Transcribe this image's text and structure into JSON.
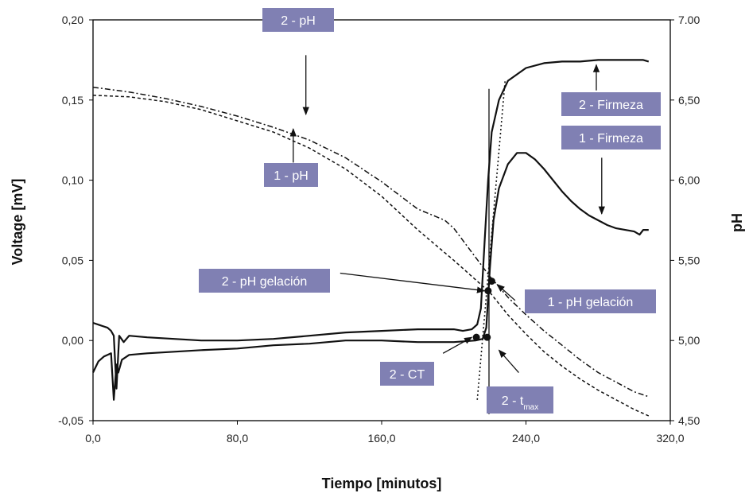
{
  "colors": {
    "annotation_bg": "#8080b3",
    "annotation_text": "#ffffff",
    "line": "#111111",
    "axis": "#000000"
  },
  "chart_data": {
    "type": "line",
    "xlabel": "Tiempo [minutos]",
    "ylabel": "Voltage [mV]",
    "y2label": "pH",
    "xlim": [
      0,
      320
    ],
    "ylim": [
      -0.05,
      0.2
    ],
    "y2lim": [
      4.5,
      7.0
    ],
    "x_ticks": [
      "0,0",
      "80,0",
      "160,0",
      "240,0",
      "320,0"
    ],
    "y_ticks": [
      "-0,05",
      "0,00",
      "0,05",
      "0,10",
      "0,15",
      "0,20"
    ],
    "y2_ticks": [
      "4,50",
      "5,00",
      "5,50",
      "6,00",
      "6,50",
      "7.00"
    ],
    "grid": false,
    "series": [
      {
        "axis": "left",
        "style": "solid",
        "points": [
          [
            0,
            -0.02
          ],
          [
            3,
            -0.013
          ],
          [
            6,
            -0.01
          ],
          [
            10,
            -0.008
          ],
          [
            11.5,
            -0.037
          ],
          [
            13,
            -0.015
          ],
          [
            14,
            -0.02
          ],
          [
            16,
            -0.012
          ],
          [
            20,
            -0.009
          ],
          [
            30,
            -0.008
          ],
          [
            45,
            -0.007
          ],
          [
            60,
            -0.006
          ],
          [
            80,
            -0.005
          ],
          [
            100,
            -0.003
          ],
          [
            120,
            -0.002
          ],
          [
            140,
            0
          ],
          [
            160,
            0
          ],
          [
            180,
            -0.001
          ],
          [
            200,
            -0.001
          ],
          [
            212,
            0
          ],
          [
            216,
            0.001
          ],
          [
            218,
            0.008
          ],
          [
            220,
            0.045
          ],
          [
            222,
            0.075
          ],
          [
            225,
            0.095
          ],
          [
            230,
            0.11
          ],
          [
            235,
            0.117
          ],
          [
            240,
            0.117
          ],
          [
            245,
            0.113
          ],
          [
            250,
            0.107
          ],
          [
            255,
            0.1
          ],
          [
            260,
            0.093
          ],
          [
            265,
            0.087
          ],
          [
            270,
            0.082
          ],
          [
            275,
            0.078
          ],
          [
            280,
            0.075
          ],
          [
            285,
            0.072
          ],
          [
            290,
            0.07
          ],
          [
            295,
            0.069
          ],
          [
            300,
            0.068
          ],
          [
            303,
            0.066
          ],
          [
            305,
            0.069
          ],
          [
            308,
            0.069
          ]
        ]
      },
      {
        "axis": "left",
        "style": "solid",
        "points": [
          [
            0,
            0.011
          ],
          [
            8,
            0.008
          ],
          [
            10,
            0.006
          ],
          [
            11.5,
            0.003
          ],
          [
            13,
            -0.03
          ],
          [
            14.5,
            0.003
          ],
          [
            17,
            -0.001
          ],
          [
            20,
            0.003
          ],
          [
            30,
            0.002
          ],
          [
            45,
            0.001
          ],
          [
            60,
            0
          ],
          [
            80,
            0
          ],
          [
            100,
            0.001
          ],
          [
            120,
            0.003
          ],
          [
            140,
            0.005
          ],
          [
            160,
            0.006
          ],
          [
            180,
            0.007
          ],
          [
            200,
            0.007
          ],
          [
            205,
            0.006
          ],
          [
            210,
            0.007
          ],
          [
            213,
            0.01
          ],
          [
            215,
            0.02
          ],
          [
            217,
            0.06
          ],
          [
            219,
            0.1
          ],
          [
            221,
            0.13
          ],
          [
            225,
            0.15
          ],
          [
            230,
            0.162
          ],
          [
            240,
            0.17
          ],
          [
            250,
            0.173
          ],
          [
            260,
            0.174
          ],
          [
            270,
            0.174
          ],
          [
            280,
            0.175
          ],
          [
            290,
            0.175
          ],
          [
            300,
            0.175
          ],
          [
            305,
            0.175
          ],
          [
            308,
            0.174
          ]
        ]
      },
      {
        "axis": "right",
        "style": "dashed",
        "points": [
          [
            0,
            6.53
          ],
          [
            20,
            6.52
          ],
          [
            40,
            6.49
          ],
          [
            60,
            6.44
          ],
          [
            80,
            6.37
          ],
          [
            100,
            6.3
          ],
          [
            120,
            6.2
          ],
          [
            140,
            6.07
          ],
          [
            160,
            5.9
          ],
          [
            180,
            5.69
          ],
          [
            200,
            5.5
          ],
          [
            210,
            5.4
          ],
          [
            220,
            5.3
          ],
          [
            230,
            5.16
          ],
          [
            240,
            5.04
          ],
          [
            250,
            4.93
          ],
          [
            260,
            4.84
          ],
          [
            270,
            4.76
          ],
          [
            280,
            4.69
          ],
          [
            290,
            4.63
          ],
          [
            300,
            4.57
          ],
          [
            308,
            4.53
          ]
        ]
      },
      {
        "axis": "right",
        "style": "dashdot",
        "points": [
          [
            0,
            6.58
          ],
          [
            20,
            6.55
          ],
          [
            40,
            6.51
          ],
          [
            60,
            6.46
          ],
          [
            80,
            6.4
          ],
          [
            100,
            6.33
          ],
          [
            120,
            6.25
          ],
          [
            140,
            6.14
          ],
          [
            160,
            5.99
          ],
          [
            180,
            5.82
          ],
          [
            195,
            5.75
          ],
          [
            200,
            5.7
          ],
          [
            210,
            5.55
          ],
          [
            220,
            5.4
          ],
          [
            230,
            5.27
          ],
          [
            240,
            5.16
          ],
          [
            250,
            5.06
          ],
          [
            260,
            4.97
          ],
          [
            270,
            4.88
          ],
          [
            280,
            4.8
          ],
          [
            290,
            4.74
          ],
          [
            300,
            4.68
          ],
          [
            308,
            4.65
          ]
        ]
      }
    ],
    "reference_lines": [
      {
        "style": "solid",
        "points": [
          [
            219.5,
            0.157
          ],
          [
            219.5,
            -0.046
          ]
        ]
      },
      {
        "style": "dotted",
        "points": [
          [
            213,
            -0.037
          ],
          [
            228.5,
            0.163
          ]
        ]
      }
    ],
    "markers": [
      {
        "x": 212.5,
        "y": 0.002
      },
      {
        "x": 218.5,
        "y": 0.002
      },
      {
        "x": 219,
        "y": 0.031
      },
      {
        "x": 221,
        "y": 0.037
      }
    ],
    "annotations": [
      {
        "label": "2 - pH",
        "arrow_from": [
          118,
          0.178
        ],
        "arrow_to": [
          118,
          0.141
        ]
      },
      {
        "label": "1 - pH",
        "arrow_from": [
          111,
          0.111
        ],
        "arrow_to": [
          111,
          0.132
        ]
      },
      {
        "label": "2 - Firmeza",
        "arrow_from": [
          279,
          0.156
        ],
        "arrow_to": [
          279,
          0.172
        ]
      },
      {
        "label": "1 - Firmeza",
        "arrow_from": [
          282,
          0.114
        ],
        "arrow_to": [
          282,
          0.079
        ]
      },
      {
        "label": "2 - pH gelación",
        "arrow_from": [
          137,
          0.042
        ],
        "arrow_to": [
          217,
          0.031
        ]
      },
      {
        "label": "1 - pH gelación",
        "arrow_from": [
          234,
          0.025
        ],
        "arrow_to": [
          224,
          0.035
        ]
      },
      {
        "label": "2 - CT",
        "arrow_from": [
          194,
          -0.008
        ],
        "arrow_to": [
          210,
          0.002
        ]
      },
      {
        "label": "2 - t",
        "label_sub": "max",
        "arrow_from": [
          236,
          -0.02
        ],
        "arrow_to": [
          225,
          -0.006
        ]
      }
    ]
  }
}
